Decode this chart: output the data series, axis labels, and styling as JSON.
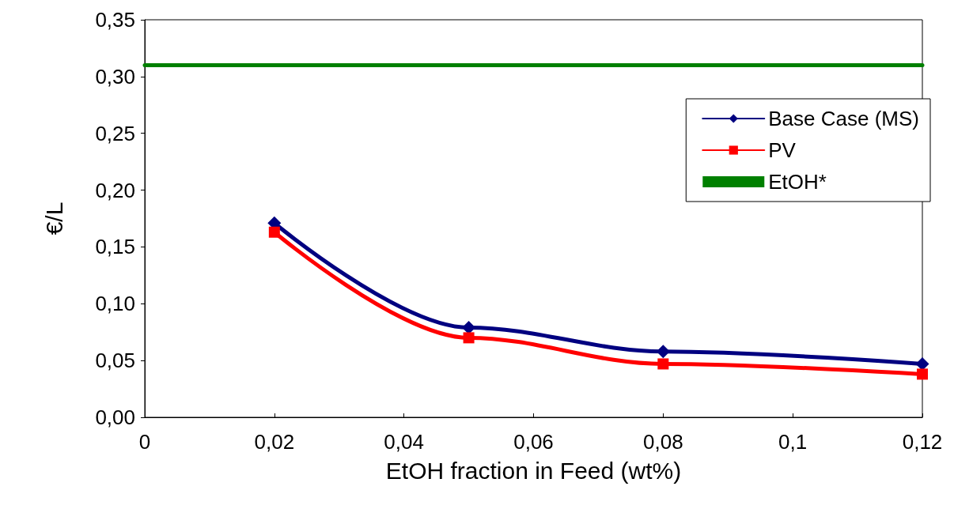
{
  "chart_data": {
    "type": "line",
    "xlabel": "EtOH fraction in Feed (wt%)",
    "ylabel": "€/L",
    "xlim": [
      0,
      0.12
    ],
    "xticks": [
      0,
      {
        "value": 0.02,
        "label": "0,02"
      },
      {
        "value": 0.04,
        "label": "0,04"
      },
      {
        "value": 0.06,
        "label": "0,06"
      },
      {
        "value": 0.08,
        "label": "0,08"
      },
      {
        "value": 0.1,
        "label": "0,1"
      },
      {
        "value": 0.12,
        "label": "0,12"
      }
    ],
    "ylim": [
      0,
      0.35
    ],
    "yticks": [
      {
        "value": 0,
        "label": "0,00"
      },
      {
        "value": 0.05,
        "label": "0,05"
      },
      {
        "value": 0.1,
        "label": "0,10"
      },
      {
        "value": 0.15,
        "label": "0,15"
      },
      {
        "value": 0.2,
        "label": "0,20"
      },
      {
        "value": 0.25,
        "label": "0,25"
      },
      {
        "value": 0.3,
        "label": "0,30"
      },
      {
        "value": 0.35,
        "label": "0,35"
      }
    ],
    "grid": false,
    "legend": "right",
    "line_style": "solid",
    "series": [
      {
        "name": "Base Case (MS)",
        "color": "#000080",
        "marker": "diamond",
        "x": [
          0.02,
          0.05,
          0.08,
          0.12
        ],
        "values": [
          0.171,
          0.079,
          0.058,
          0.047
        ]
      },
      {
        "name": "PV",
        "color": "#ff0000",
        "marker": "square",
        "x": [
          0.02,
          0.05,
          0.08,
          0.12
        ],
        "values": [
          0.163,
          0.07,
          0.047,
          0.038
        ]
      },
      {
        "name": "EtOH*",
        "color": "#008000",
        "marker": "none",
        "x": [
          0,
          0.12
        ],
        "values": [
          0.31,
          0.31
        ]
      }
    ]
  }
}
